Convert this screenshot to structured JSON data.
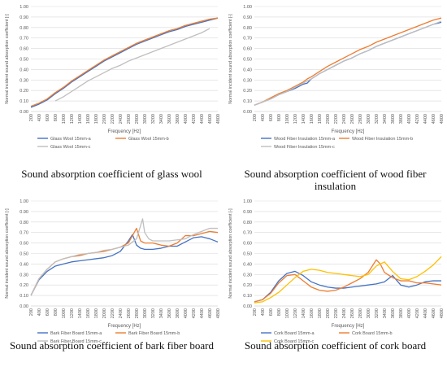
{
  "chart_data": [
    {
      "type": "line",
      "xlabel": "Frequency [Hz]",
      "ylabel": "Normal incident sound absorption coefficient [-]",
      "ylim": [
        0,
        1
      ],
      "yticks": [
        "0.00",
        "0.10",
        "0.20",
        "0.30",
        "0.40",
        "0.50",
        "0.60",
        "0.70",
        "0.80",
        "0.90",
        "1.00"
      ],
      "xticks": [
        "200",
        "400",
        "600",
        "800",
        "1000",
        "1200",
        "1400",
        "1600",
        "1800",
        "2000",
        "2200",
        "2400",
        "2600",
        "2800",
        "3000",
        "3200",
        "3400",
        "3600",
        "3800",
        "4000",
        "4200",
        "4400",
        "4600",
        "4800"
      ],
      "xlim": [
        200,
        4800
      ],
      "grid": true,
      "legend": "bottom",
      "caption": "Sound absorption coefficient of glass wool",
      "series": [
        {
          "name": "Glass Wool 15mm-a",
          "color": "#4472C4",
          "x": [
            200,
            400,
            600,
            800,
            1000,
            1200,
            1400,
            1600,
            1800,
            2000,
            2200,
            2400,
            2600,
            2800,
            3000,
            3200,
            3400,
            3600,
            3800,
            4000,
            4200,
            4400,
            4600,
            4800
          ],
          "y": [
            0.04,
            0.07,
            0.11,
            0.17,
            0.22,
            0.28,
            0.33,
            0.38,
            0.43,
            0.48,
            0.52,
            0.56,
            0.6,
            0.64,
            0.67,
            0.7,
            0.73,
            0.76,
            0.78,
            0.81,
            0.83,
            0.85,
            0.87,
            0.89
          ]
        },
        {
          "name": "Glass Wool 15mm-b",
          "color": "#ED7D31",
          "x": [
            200,
            400,
            600,
            800,
            1000,
            1200,
            1400,
            1600,
            1800,
            2000,
            2200,
            2400,
            2600,
            2800,
            3000,
            3200,
            3400,
            3600,
            3800,
            4000,
            4200,
            4400,
            4600,
            4800
          ],
          "y": [
            0.05,
            0.08,
            0.12,
            0.18,
            0.23,
            0.29,
            0.34,
            0.39,
            0.44,
            0.49,
            0.53,
            0.57,
            0.61,
            0.65,
            0.68,
            0.71,
            0.74,
            0.77,
            0.79,
            0.82,
            0.84,
            0.86,
            0.88,
            0.89
          ]
        },
        {
          "name": "Glass Wool 15mm-c",
          "color": "#BFBFBF",
          "x": [
            800,
            1000,
            1200,
            1400,
            1600,
            1800,
            2000,
            2200,
            2400,
            2600,
            2800,
            3000,
            3200,
            3400,
            3600,
            3800,
            4000,
            4200,
            4400,
            4600
          ],
          "y": [
            0.1,
            0.14,
            0.19,
            0.24,
            0.29,
            0.33,
            0.37,
            0.41,
            0.44,
            0.48,
            0.51,
            0.54,
            0.57,
            0.6,
            0.63,
            0.66,
            0.69,
            0.72,
            0.75,
            0.79
          ]
        }
      ]
    },
    {
      "type": "line",
      "xlabel": "Frequency [Hz]",
      "ylabel": "Normal incident sound absorption coefficient [-]",
      "ylim": [
        0,
        1
      ],
      "yticks": [
        "0.00",
        "0.10",
        "0.20",
        "0.30",
        "0.40",
        "0.50",
        "0.60",
        "0.70",
        "0.80",
        "0.90",
        "1.00"
      ],
      "xticks": [
        "200",
        "400",
        "600",
        "800",
        "1000",
        "1200",
        "1400",
        "1600",
        "1800",
        "2000",
        "2200",
        "2400",
        "2600",
        "2800",
        "3000",
        "3200",
        "3400",
        "3600",
        "3800",
        "4000",
        "4200",
        "4400",
        "4600",
        "4800"
      ],
      "xlim": [
        200,
        4800
      ],
      "grid": true,
      "legend": "bottom",
      "caption": "Sound absorption coefficient of wood fiber insulation",
      "series": [
        {
          "name": "Wood Fiber Insulation 15mm-a",
          "color": "#4472C4",
          "x": [
            200,
            400,
            600,
            800,
            1000,
            1200,
            1400,
            1500,
            1600,
            1800,
            2000,
            2200,
            2400,
            2600,
            2800,
            3000,
            3200,
            3400,
            3600,
            3800,
            4000,
            4200,
            4400,
            4600,
            4800
          ],
          "y": [
            0.06,
            0.09,
            0.12,
            0.16,
            0.19,
            0.22,
            0.26,
            0.27,
            0.31,
            0.36,
            0.4,
            0.44,
            0.48,
            0.51,
            0.55,
            0.58,
            0.62,
            0.65,
            0.68,
            0.71,
            0.74,
            0.77,
            0.8,
            0.83,
            0.85
          ]
        },
        {
          "name": "Wood Fiber Insulation 15mm-b",
          "color": "#ED7D31",
          "x": [
            200,
            400,
            600,
            800,
            1000,
            1200,
            1400,
            1500,
            1600,
            1800,
            2000,
            2200,
            2400,
            2600,
            2800,
            3000,
            3200,
            3400,
            3600,
            3800,
            4000,
            4200,
            4400,
            4600,
            4800
          ],
          "y": [
            0.06,
            0.09,
            0.13,
            0.17,
            0.2,
            0.24,
            0.28,
            0.31,
            0.33,
            0.38,
            0.43,
            0.47,
            0.51,
            0.55,
            0.59,
            0.62,
            0.66,
            0.69,
            0.72,
            0.75,
            0.78,
            0.81,
            0.84,
            0.87,
            0.89
          ]
        },
        {
          "name": "Wood Fiber Insulation 15mm-c",
          "color": "#BFBFBF",
          "x": [
            200,
            400,
            600,
            800,
            1000,
            1200,
            1400,
            1600,
            1800,
            2000,
            2200,
            2400,
            2600,
            2800,
            3000,
            3200,
            3400,
            3600,
            3800,
            4000,
            4200,
            4400,
            4600,
            4800
          ],
          "y": [
            0.06,
            0.09,
            0.12,
            0.16,
            0.19,
            0.23,
            0.27,
            0.31,
            0.36,
            0.4,
            0.44,
            0.48,
            0.51,
            0.55,
            0.58,
            0.62,
            0.65,
            0.68,
            0.71,
            0.74,
            0.77,
            0.8,
            0.83,
            0.86
          ]
        }
      ]
    },
    {
      "type": "line",
      "xlabel": "Frequency [Hz]",
      "ylabel": "Normal incident sound absorption coefficient [-]",
      "ylim": [
        0,
        1
      ],
      "yticks": [
        "0.00",
        "0.10",
        "0.20",
        "0.30",
        "0.40",
        "0.50",
        "0.60",
        "0.70",
        "0.80",
        "0.90",
        "1.00"
      ],
      "xticks": [
        "200",
        "400",
        "600",
        "800",
        "1000",
        "1200",
        "1400",
        "1600",
        "1800",
        "2000",
        "2200",
        "2400",
        "2600",
        "2800",
        "3000",
        "3200",
        "3400",
        "3600",
        "3800",
        "4000",
        "4200",
        "4400",
        "4600",
        "4800"
      ],
      "xlim": [
        200,
        4800
      ],
      "grid": true,
      "legend": "bottom",
      "caption": "Sound absorption coefficient of bark fiber board",
      "series": [
        {
          "name": "Bark Fiber Board 15mm-a",
          "color": "#4472C4",
          "x": [
            200,
            400,
            600,
            800,
            1000,
            1200,
            1400,
            1600,
            1800,
            2000,
            2200,
            2400,
            2600,
            2700,
            2800,
            2900,
            3000,
            3200,
            3400,
            3600,
            3800,
            4000,
            4200,
            4400,
            4600,
            4800
          ],
          "y": [
            0.1,
            0.25,
            0.33,
            0.38,
            0.4,
            0.42,
            0.43,
            0.44,
            0.45,
            0.46,
            0.48,
            0.52,
            0.62,
            0.68,
            0.58,
            0.55,
            0.54,
            0.54,
            0.55,
            0.57,
            0.57,
            0.61,
            0.65,
            0.66,
            0.64,
            0.61
          ]
        },
        {
          "name": "Bark Fiber Board 15mm-b",
          "color": "#ED7D31",
          "x": [
            200,
            400,
            600,
            800,
            1000,
            1200,
            1400,
            1600,
            1800,
            2000,
            2200,
            2400,
            2600,
            2800,
            2900,
            3000,
            3200,
            3400,
            3600,
            3800,
            4000,
            4200,
            4400,
            4600,
            4800
          ],
          "y": [
            0.1,
            0.26,
            0.35,
            0.42,
            0.45,
            0.47,
            0.48,
            0.5,
            0.51,
            0.52,
            0.54,
            0.56,
            0.6,
            0.74,
            0.62,
            0.6,
            0.6,
            0.58,
            0.57,
            0.6,
            0.67,
            0.67,
            0.69,
            0.71,
            0.7
          ]
        },
        {
          "name": "Bark Fiber Board 15mm-c",
          "color": "#BFBFBF",
          "x": [
            200,
            400,
            600,
            800,
            1000,
            1200,
            1400,
            1600,
            1800,
            2000,
            2200,
            2400,
            2600,
            2800,
            2950,
            3000,
            3100,
            3200,
            3400,
            3600,
            3800,
            4000,
            4200,
            4400,
            4600,
            4800
          ],
          "y": [
            0.1,
            0.26,
            0.35,
            0.42,
            0.45,
            0.47,
            0.49,
            0.5,
            0.51,
            0.53,
            0.54,
            0.56,
            0.58,
            0.64,
            0.83,
            0.7,
            0.64,
            0.62,
            0.62,
            0.62,
            0.63,
            0.64,
            0.68,
            0.71,
            0.74,
            0.74
          ]
        }
      ]
    },
    {
      "type": "line",
      "xlabel": "Frequency [Hz]",
      "ylabel": "Normal incident sound absorption coefficient [-]",
      "ylim": [
        0,
        1
      ],
      "yticks": [
        "0.00",
        "0.10",
        "0.20",
        "0.30",
        "0.40",
        "0.50",
        "0.60",
        "0.70",
        "0.80",
        "0.90",
        "1.00"
      ],
      "xticks": [
        "200",
        "400",
        "600",
        "800",
        "1000",
        "1200",
        "1400",
        "1600",
        "1800",
        "2000",
        "2200",
        "2400",
        "2600",
        "2800",
        "3000",
        "3200",
        "3400",
        "3600",
        "3800",
        "4000",
        "4200",
        "4400",
        "4600",
        "4800"
      ],
      "xlim": [
        200,
        4800
      ],
      "grid": true,
      "legend": "bottom",
      "caption": "Sound absorption coefficient of cork board",
      "series": [
        {
          "name": "Cork Board 15mm-a",
          "color": "#4472C4",
          "x": [
            200,
            400,
            600,
            800,
            1000,
            1200,
            1400,
            1600,
            1800,
            2000,
            2200,
            2400,
            2600,
            2800,
            3000,
            3200,
            3400,
            3600,
            3800,
            4000,
            4200,
            4400,
            4600,
            4800
          ],
          "y": [
            0.04,
            0.06,
            0.13,
            0.24,
            0.31,
            0.33,
            0.29,
            0.23,
            0.2,
            0.18,
            0.17,
            0.17,
            0.18,
            0.19,
            0.2,
            0.21,
            0.23,
            0.29,
            0.2,
            0.18,
            0.2,
            0.23,
            0.24,
            0.24
          ]
        },
        {
          "name": "Cork Board 15mm-b",
          "color": "#ED7D31",
          "x": [
            200,
            400,
            600,
            800,
            1000,
            1200,
            1400,
            1600,
            1800,
            2000,
            2200,
            2400,
            2600,
            2800,
            3000,
            3200,
            3300,
            3400,
            3600,
            3800,
            4000,
            4200,
            4400,
            4600,
            4800
          ],
          "y": [
            0.04,
            0.06,
            0.12,
            0.22,
            0.29,
            0.3,
            0.24,
            0.18,
            0.15,
            0.14,
            0.15,
            0.18,
            0.22,
            0.26,
            0.32,
            0.44,
            0.4,
            0.32,
            0.27,
            0.24,
            0.24,
            0.22,
            0.22,
            0.21,
            0.2
          ]
        },
        {
          "name": "Cork Board 15mm-c",
          "color": "#FFC000",
          "x": [
            200,
            400,
            600,
            800,
            1000,
            1200,
            1400,
            1600,
            1800,
            2000,
            2200,
            2400,
            2600,
            2800,
            3000,
            3200,
            3400,
            3600,
            3800,
            4000,
            4200,
            4400,
            4600,
            4800
          ],
          "y": [
            0.03,
            0.04,
            0.08,
            0.13,
            0.2,
            0.27,
            0.33,
            0.35,
            0.34,
            0.32,
            0.31,
            0.3,
            0.29,
            0.28,
            0.3,
            0.38,
            0.42,
            0.33,
            0.26,
            0.25,
            0.28,
            0.33,
            0.39,
            0.47
          ]
        }
      ]
    }
  ]
}
